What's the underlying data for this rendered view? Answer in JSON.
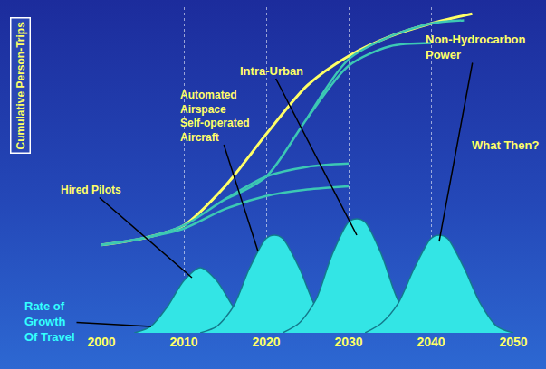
{
  "chart_data": {
    "type": "line",
    "y_label": "Cumulative Person-Trips",
    "annotations": [
      "Hired Pilots",
      "Automated\nAirspace\nSelf-operated\nAircraft",
      "Intra-Urban",
      "Non-Hydrocarbon\nPower",
      "What Then?",
      "Rate of\nGrowth\nOf Travel"
    ],
    "xlim": [
      2000,
      2050
    ],
    "xticks": [
      2000,
      2010,
      2020,
      2030,
      2040,
      2050
    ],
    "ylim": [
      0,
      100
    ],
    "yticks": [],
    "grid": true,
    "tick_labels": "x",
    "series": [
      {
        "type": "area",
        "color": "#33e5e5",
        "x": [
          2004,
          2006,
          2008,
          2010,
          2012,
          2014,
          2016,
          2018,
          2020
        ],
        "values": [
          0,
          2,
          8,
          16,
          20,
          16,
          8,
          2,
          0
        ]
      },
      {
        "type": "area",
        "color": "#33e5e5",
        "x": [
          2012,
          2014,
          2016,
          2018,
          2020,
          2021,
          2022,
          2024,
          2026,
          2028,
          2030
        ],
        "values": [
          0,
          2,
          8,
          20,
          29,
          30,
          29,
          20,
          8,
          2,
          0
        ]
      },
      {
        "type": "area",
        "color": "#33e5e5",
        "x": [
          2022,
          2024,
          2026,
          2028,
          2030,
          2031,
          2032,
          2034,
          2036,
          2038,
          2040
        ],
        "values": [
          0,
          3,
          10,
          24,
          34,
          35,
          34,
          24,
          10,
          3,
          0
        ]
      },
      {
        "type": "area",
        "color": "#33e5e5",
        "x": [
          2032,
          2034,
          2036,
          2038,
          2040,
          2041,
          2042,
          2044,
          2046,
          2048,
          2050
        ],
        "values": [
          0,
          3,
          9,
          20,
          29,
          30,
          29,
          20,
          9,
          2,
          0
        ]
      },
      {
        "type": "line",
        "color": "#ffff66",
        "x": [
          2000,
          2005,
          2010,
          2015,
          2020,
          2025,
          2030,
          2035,
          2040,
          2045
        ],
        "values": [
          27,
          29,
          33,
          45,
          61,
          76,
          85,
          91,
          95,
          98
        ]
      },
      {
        "type": "line",
        "color": "#3cc8b4",
        "x": [
          2000,
          2005,
          2010,
          2015,
          2020,
          2025,
          2030
        ],
        "values": [
          27,
          29,
          32,
          38,
          42,
          44,
          45
        ]
      },
      {
        "type": "line",
        "color": "#3cc8b4",
        "x": [
          2000,
          2005,
          2010,
          2015,
          2020,
          2025,
          2030
        ],
        "values": [
          27,
          29,
          33,
          41,
          48,
          51,
          52
        ]
      },
      {
        "type": "line",
        "color": "#3cc8b4",
        "x": [
          2015,
          2020,
          2025,
          2030,
          2035,
          2040
        ],
        "values": [
          41,
          48,
          66,
          82,
          88,
          89
        ]
      },
      {
        "type": "line",
        "color": "#3cc8b4",
        "x": [
          2025,
          2030,
          2035,
          2040,
          2044
        ],
        "values": [
          66,
          84,
          91,
          95,
          96
        ]
      }
    ]
  }
}
